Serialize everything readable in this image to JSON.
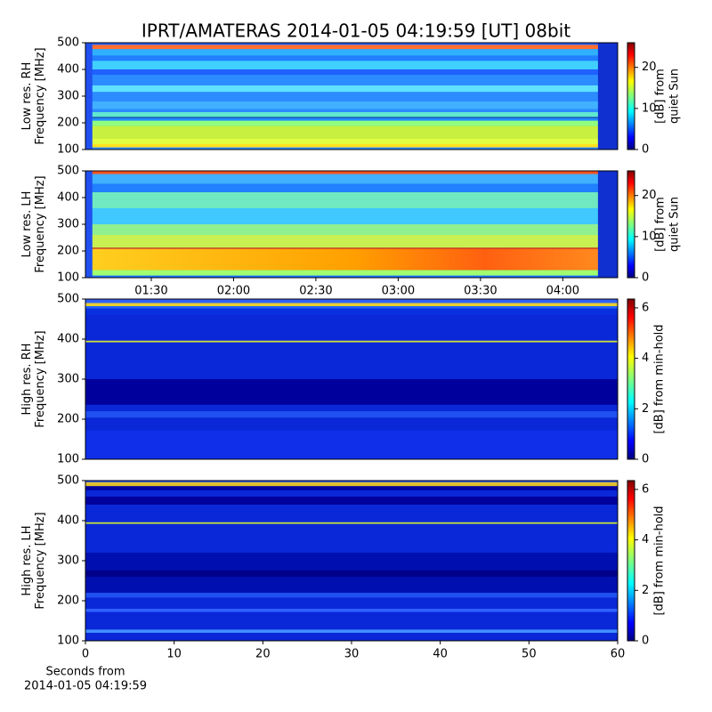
{
  "chart_data": [
    {
      "type": "heatmap",
      "title": "IPRT/AMATERAS 2014-01-05 04:19:59 [UT]   08bit",
      "ylabel": [
        "Low res. RH",
        "Frequency [MHz]"
      ],
      "ylim": [
        100,
        500
      ],
      "yticks": [
        100,
        200,
        300,
        400,
        500
      ],
      "colorbar_label": [
        "[dB] from",
        "quiet Sun"
      ],
      "clim": [
        0,
        26
      ],
      "cticks": [
        0,
        10,
        20
      ]
    },
    {
      "type": "heatmap",
      "ylabel": [
        "Low res. LH",
        "Frequency [MHz]"
      ],
      "ylim": [
        100,
        500
      ],
      "yticks": [
        100,
        200,
        300,
        400,
        500
      ],
      "xlim": [
        66,
        260
      ],
      "xticks": [
        {
          "value": 90,
          "label": "01:30"
        },
        {
          "value": 120,
          "label": "02:00"
        },
        {
          "value": 150,
          "label": "02:30"
        },
        {
          "value": 180,
          "label": "03:00"
        },
        {
          "value": 210,
          "label": "03:30"
        },
        {
          "value": 240,
          "label": "04:00"
        }
      ],
      "colorbar_label": [
        "[dB] from",
        "quiet Sun"
      ],
      "clim": [
        0,
        26
      ],
      "cticks": [
        0,
        10,
        20
      ]
    },
    {
      "type": "heatmap",
      "ylabel": [
        "High res. RH",
        "Frequency [MHz]"
      ],
      "ylim": [
        100,
        500
      ],
      "yticks": [
        100,
        200,
        300,
        400,
        500
      ],
      "colorbar_label": [
        "[dB] from min-hold"
      ],
      "clim": [
        0,
        6.35
      ],
      "cticks": [
        0,
        2,
        4,
        6
      ]
    },
    {
      "type": "heatmap",
      "ylabel": [
        "High res. LH",
        "Frequency [MHz]"
      ],
      "ylim": [
        100,
        500
      ],
      "yticks": [
        100,
        200,
        300,
        400,
        500
      ],
      "xlim": [
        0,
        60
      ],
      "xticks": [
        0,
        10,
        20,
        30,
        40,
        50,
        60
      ],
      "xlabel": [
        "Seconds from",
        "2014-01-05 04:19:59"
      ],
      "colorbar_label": [
        "[dB] from min-hold"
      ],
      "clim": [
        0,
        6.35
      ],
      "cticks": [
        0,
        2,
        4,
        6
      ]
    }
  ]
}
